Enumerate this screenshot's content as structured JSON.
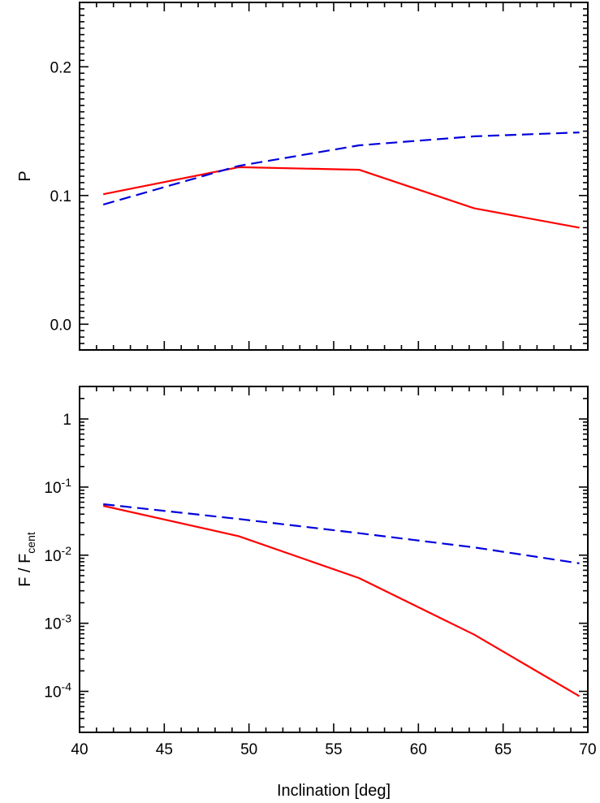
{
  "chart_data": [
    {
      "type": "line",
      "ylabel": "P",
      "xlim": [
        40,
        70
      ],
      "ylim": [
        -0.02,
        0.25
      ],
      "yscale": "linear",
      "y_ticks": [
        0.0,
        0.1,
        0.2
      ],
      "y_tick_labels": [
        "0.0",
        "0.1",
        "0.2"
      ],
      "x_ticks": [
        40,
        45,
        50,
        55,
        60,
        65,
        70
      ],
      "x_tick_labels": [],
      "grid": false,
      "series": [
        {
          "color": "#ff0000",
          "dash": "solid",
          "x": [
            41.4,
            49.4,
            56.5,
            63.3,
            69.5
          ],
          "values": [
            0.101,
            0.122,
            0.12,
            0.09,
            0.075
          ]
        },
        {
          "color": "#0000dd",
          "dash": "dashed",
          "x": [
            41.4,
            49.4,
            56.5,
            63.3,
            69.5
          ],
          "values": [
            0.093,
            0.123,
            0.139,
            0.146,
            0.149
          ]
        }
      ]
    },
    {
      "type": "line",
      "ylabel_main": "F / F",
      "ylabel_sub": "cent",
      "xlabel": "Inclination [deg]",
      "xlim": [
        40,
        70
      ],
      "ylim": [
        2.5e-05,
        3
      ],
      "yscale": "log",
      "y_ticks": [
        0.0001,
        0.001,
        0.01,
        0.1,
        1
      ],
      "y_tick_labels": [
        {
          "base": "10",
          "exp": "-4"
        },
        {
          "base": "10",
          "exp": "-3"
        },
        {
          "base": "10",
          "exp": "-2"
        },
        {
          "base": "10",
          "exp": "-1"
        },
        {
          "base": "1",
          "exp": ""
        }
      ],
      "x_ticks": [
        40,
        45,
        50,
        55,
        60,
        65,
        70
      ],
      "x_tick_labels": [
        "40",
        "45",
        "50",
        "55",
        "60",
        "65",
        "70"
      ],
      "grid": false,
      "series": [
        {
          "color": "#ff0000",
          "dash": "solid",
          "x": [
            41.4,
            49.4,
            56.5,
            63.3,
            69.5
          ],
          "values": [
            0.053,
            0.019,
            0.0046,
            0.00068,
            8.5e-05
          ]
        },
        {
          "color": "#0000dd",
          "dash": "dashed",
          "x": [
            41.4,
            49.4,
            56.5,
            63.3,
            69.5
          ],
          "values": [
            0.056,
            0.034,
            0.021,
            0.013,
            0.0076
          ]
        }
      ]
    }
  ]
}
